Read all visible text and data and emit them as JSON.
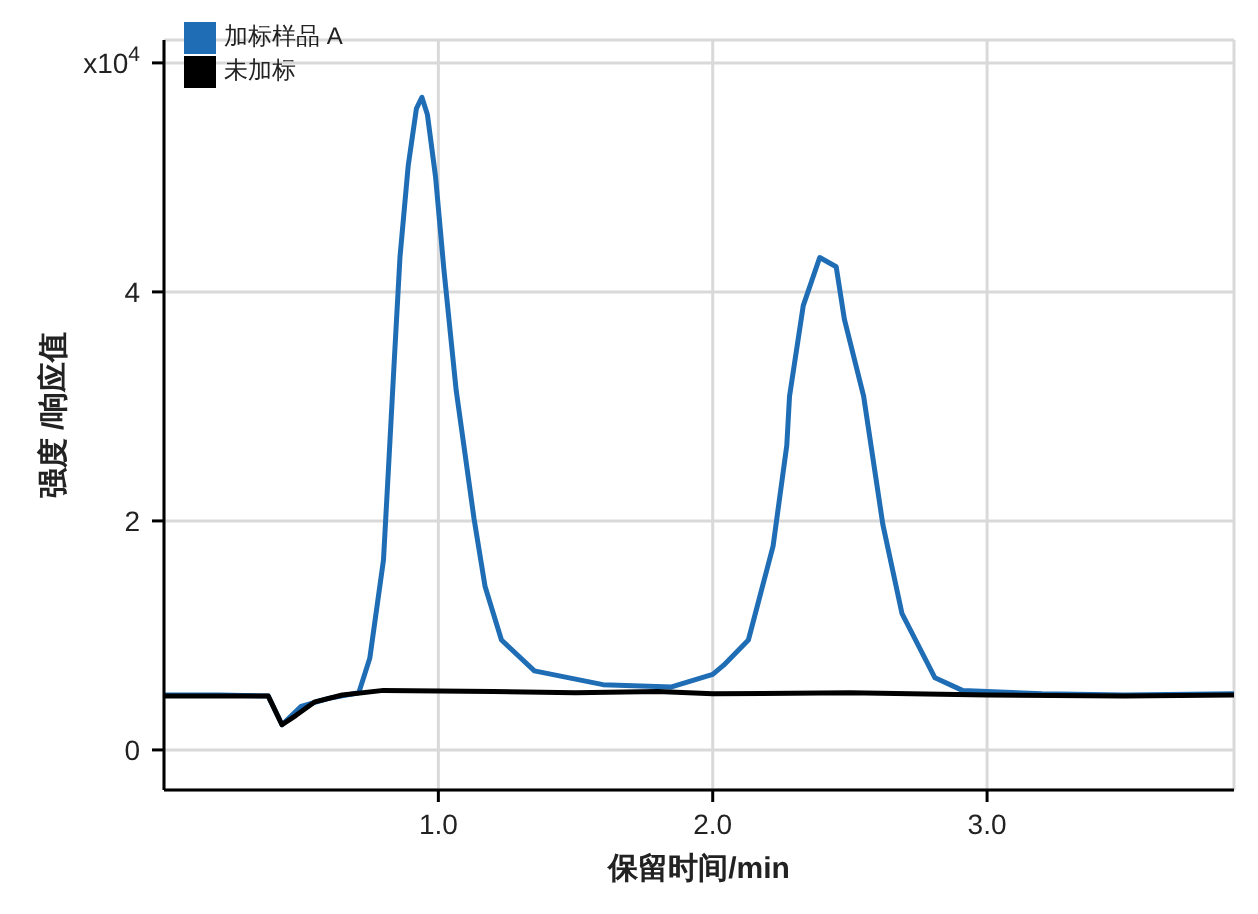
{
  "chart_data": {
    "type": "line",
    "xlabel": "保留时间/min",
    "ylabel": "强度 /响应值",
    "xlim": [
      0,
      3.9
    ],
    "xticks": [
      {
        "value": 1,
        "label": "1.0"
      },
      {
        "value": 2,
        "label": "2.0"
      },
      {
        "value": 3,
        "label": "3.0"
      }
    ],
    "ylim": [
      -0.35,
      6.2
    ],
    "yticks": [
      0,
      2,
      4,
      {
        "value": 6,
        "label": "x10$^{4}$"
      }
    ],
    "grid": true,
    "legend": "top left",
    "marker": "none",
    "line_style": "solid",
    "series": [
      {
        "name": "加标样品 A",
        "color": "#1f6db5",
        "x": [
          0,
          0.2,
          0.38,
          0.43,
          0.5,
          0.6,
          0.71,
          0.75,
          0.8,
          0.82,
          0.84,
          0.86,
          0.89,
          0.92,
          0.94,
          0.96,
          0.99,
          1.02,
          1.065,
          1.13,
          1.17,
          1.23,
          1.35,
          1.6,
          1.85,
          2.0,
          2.04,
          2.13,
          2.22,
          2.27,
          2.28,
          2.33,
          2.39,
          2.45,
          2.48,
          2.55,
          2.62,
          2.69,
          2.81,
          2.91,
          3.2,
          3.5,
          3.9
        ],
        "values": [
          0.48,
          0.48,
          0.47,
          0.22,
          0.38,
          0.45,
          0.5,
          0.8,
          1.66,
          2.54,
          3.43,
          4.3,
          5.1,
          5.6,
          5.7,
          5.55,
          5.0,
          4.2,
          3.14,
          2.02,
          1.43,
          0.96,
          0.69,
          0.57,
          0.55,
          0.66,
          0.74,
          0.96,
          1.78,
          2.66,
          3.09,
          3.88,
          4.3,
          4.22,
          3.76,
          3.09,
          1.97,
          1.19,
          0.63,
          0.52,
          0.49,
          0.48,
          0.49
        ]
      },
      {
        "name": "未加标",
        "color": "#000000",
        "x": [
          0,
          0.2,
          0.38,
          0.43,
          0.48,
          0.55,
          0.65,
          0.8,
          1.2,
          1.5,
          1.8,
          2.0,
          2.5,
          3.0,
          3.5,
          3.9
        ],
        "values": [
          0.47,
          0.47,
          0.47,
          0.22,
          0.3,
          0.42,
          0.48,
          0.52,
          0.51,
          0.5,
          0.51,
          0.49,
          0.5,
          0.48,
          0.47,
          0.48
        ]
      }
    ]
  }
}
